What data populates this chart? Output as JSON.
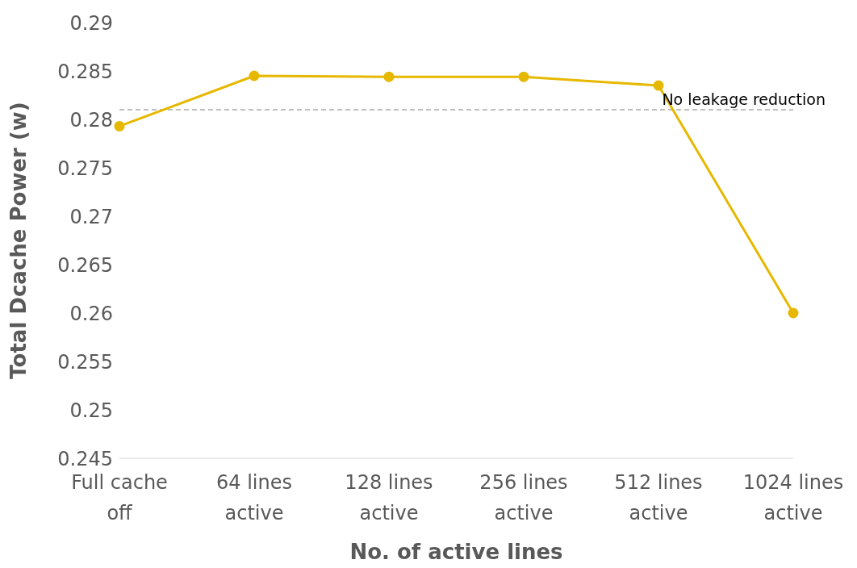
{
  "chart_data": {
    "type": "line",
    "xlabel": "No. of active lines",
    "ylabel": "Total Dcache Power (w)",
    "categories": [
      "Full cache off",
      "64 lines active",
      "128 lines active",
      "256 lines active",
      "512 lines active",
      "1024 lines active"
    ],
    "series": [
      {
        "color": "#e6b800",
        "values": [
          0.2793,
          0.2845,
          0.2844,
          0.2844,
          0.2835,
          0.26
        ]
      }
    ],
    "ylim": [
      0.245,
      0.29
    ],
    "yticks": [
      0.245,
      0.25,
      0.255,
      0.26,
      0.265,
      0.27,
      0.275,
      0.28,
      0.285,
      0.29
    ],
    "ref_lines": [
      {
        "axis": "y",
        "value": 0.281,
        "label": "No leakage reduction",
        "color": "#808080",
        "line_style": "dashed"
      }
    ],
    "grid": false,
    "legend": false,
    "marker": "circle",
    "line_style": "solid"
  }
}
